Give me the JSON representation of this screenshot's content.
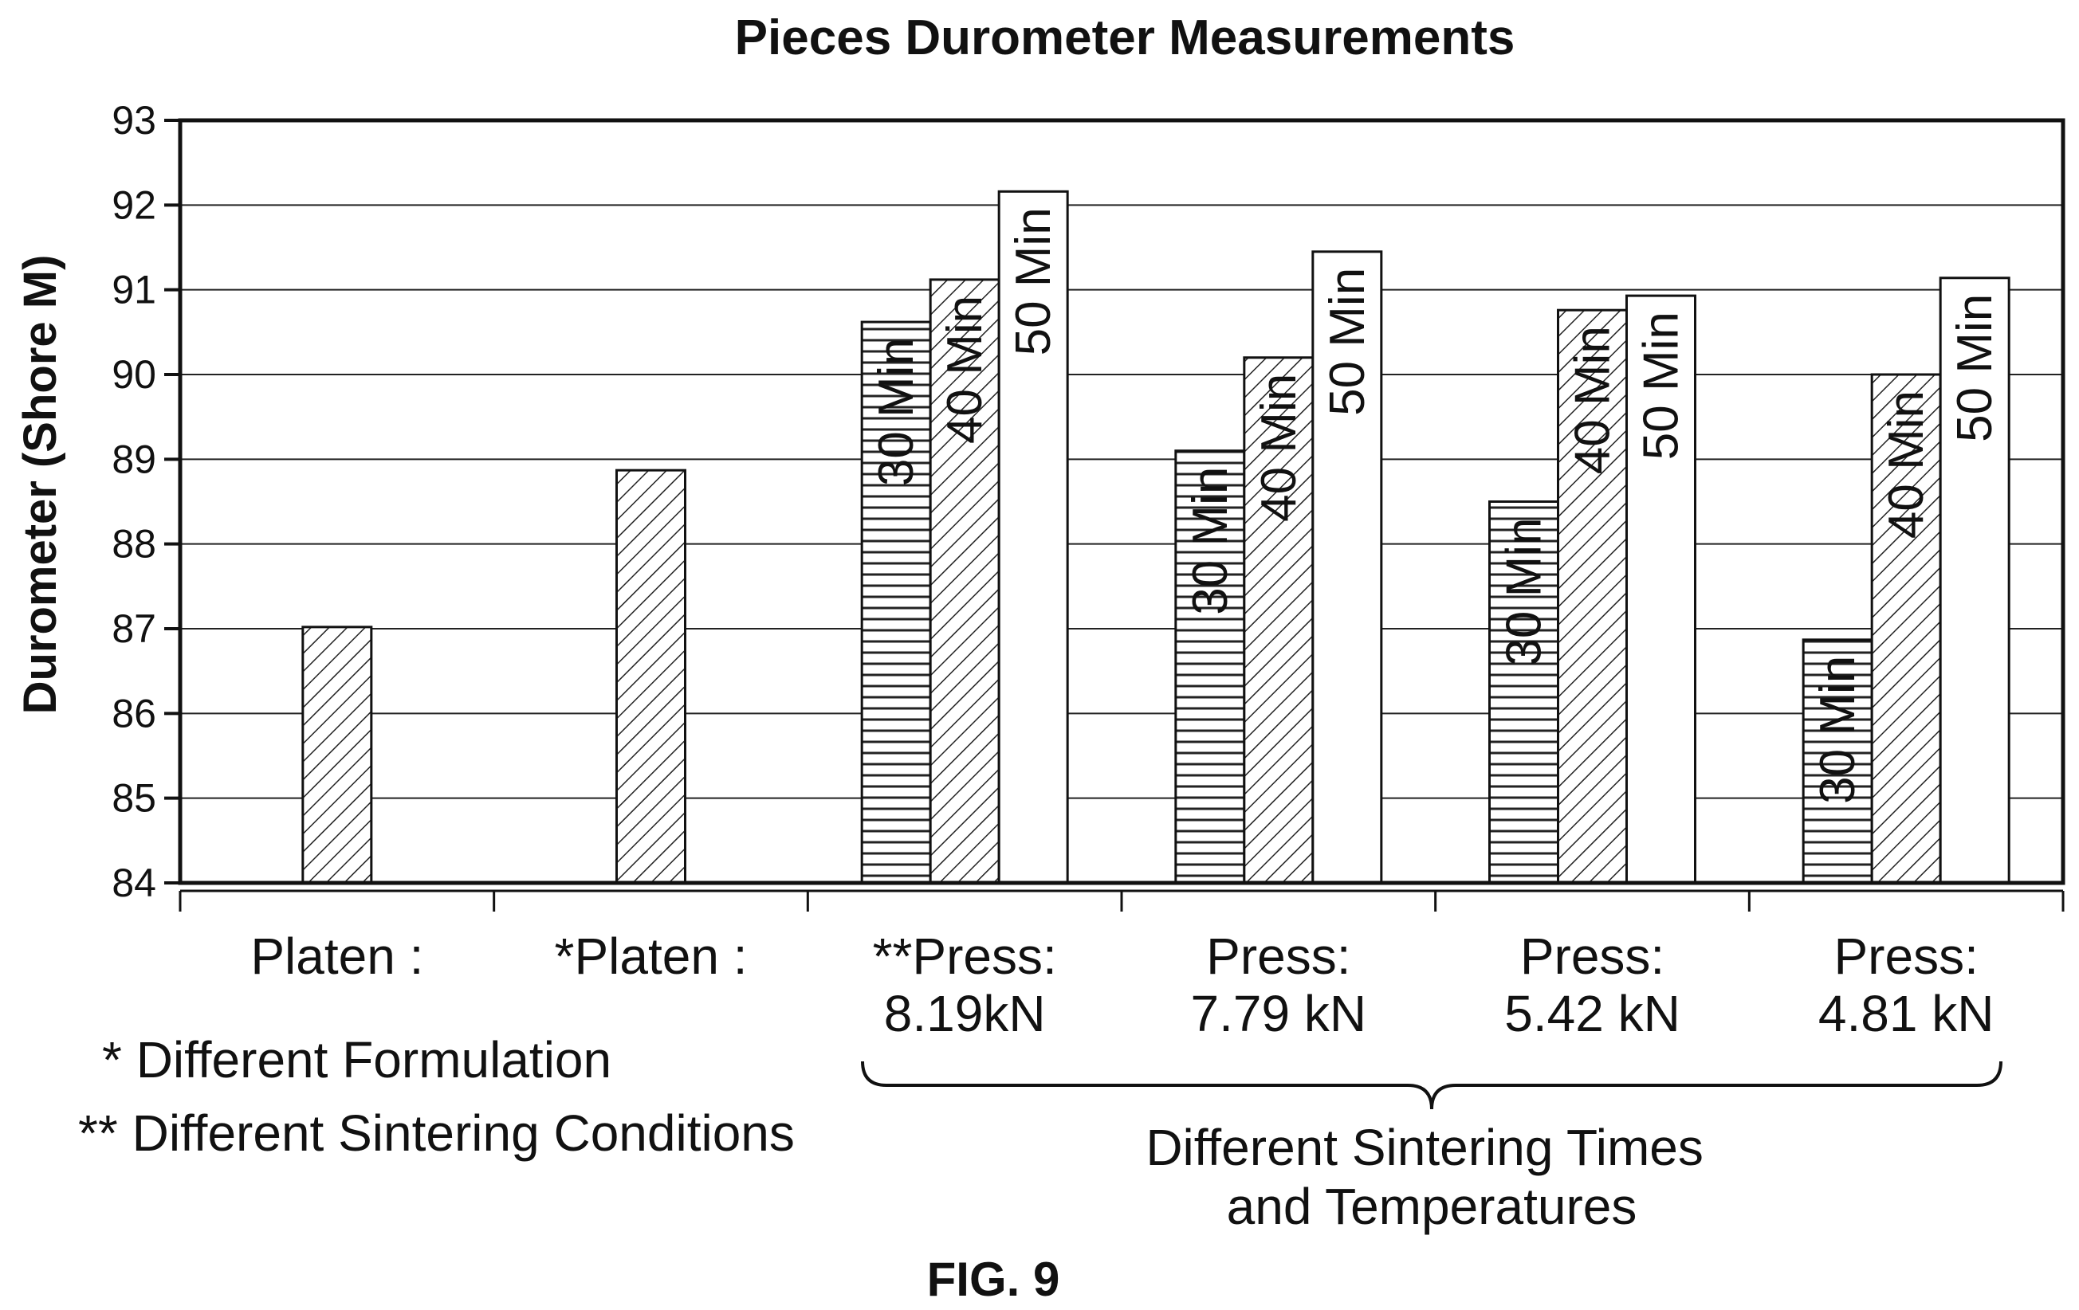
{
  "chart_data": {
    "type": "bar",
    "title": "Pieces Durometer Measurements",
    "ylabel": "Durometer (Shore M)",
    "ylim": [
      84,
      93
    ],
    "yticks": [
      84,
      85,
      86,
      87,
      88,
      89,
      90,
      91,
      92,
      93
    ],
    "grid": true,
    "groups": [
      {
        "label_lines": [
          "Platen :"
        ],
        "bars": [
          {
            "value": 87.02,
            "pattern": "diagonal",
            "label": ""
          }
        ]
      },
      {
        "label_lines": [
          "*Platen :"
        ],
        "bars": [
          {
            "value": 88.87,
            "pattern": "diagonal",
            "label": ""
          }
        ]
      },
      {
        "label_lines": [
          "**Press:",
          "8.19kN"
        ],
        "bars": [
          {
            "value": 90.62,
            "pattern": "horizontal",
            "label": "30 Min"
          },
          {
            "value": 91.12,
            "pattern": "diagonal",
            "label": "40 Min"
          },
          {
            "value": 92.16,
            "pattern": "solid",
            "label": "50 Min"
          }
        ]
      },
      {
        "label_lines": [
          "Press:",
          "7.79 kN"
        ],
        "bars": [
          {
            "value": 89.1,
            "pattern": "horizontal",
            "label": "30 Min"
          },
          {
            "value": 90.2,
            "pattern": "diagonal",
            "label": "40 Min"
          },
          {
            "value": 91.45,
            "pattern": "solid",
            "label": "50 Min"
          }
        ]
      },
      {
        "label_lines": [
          "Press:",
          "5.42 kN"
        ],
        "bars": [
          {
            "value": 88.5,
            "pattern": "horizontal",
            "label": "30 Min"
          },
          {
            "value": 90.76,
            "pattern": "diagonal",
            "label": "40 Min"
          },
          {
            "value": 90.93,
            "pattern": "solid",
            "label": "50 Min"
          }
        ]
      },
      {
        "label_lines": [
          "Press:",
          "4.81 kN"
        ],
        "bars": [
          {
            "value": 86.87,
            "pattern": "horizontal",
            "label": "30 Min"
          },
          {
            "value": 90.0,
            "pattern": "diagonal",
            "label": "40 Min"
          },
          {
            "value": 91.14,
            "pattern": "solid",
            "label": "50 Min"
          }
        ]
      }
    ],
    "annotations": {
      "footnote_1": "* Different Formulation",
      "footnote_2": "** Different Sintering Conditions",
      "brace_label_lines": [
        "Different Sintering Times",
        "and Temperatures"
      ]
    },
    "figure_label": "FIG. 9"
  }
}
